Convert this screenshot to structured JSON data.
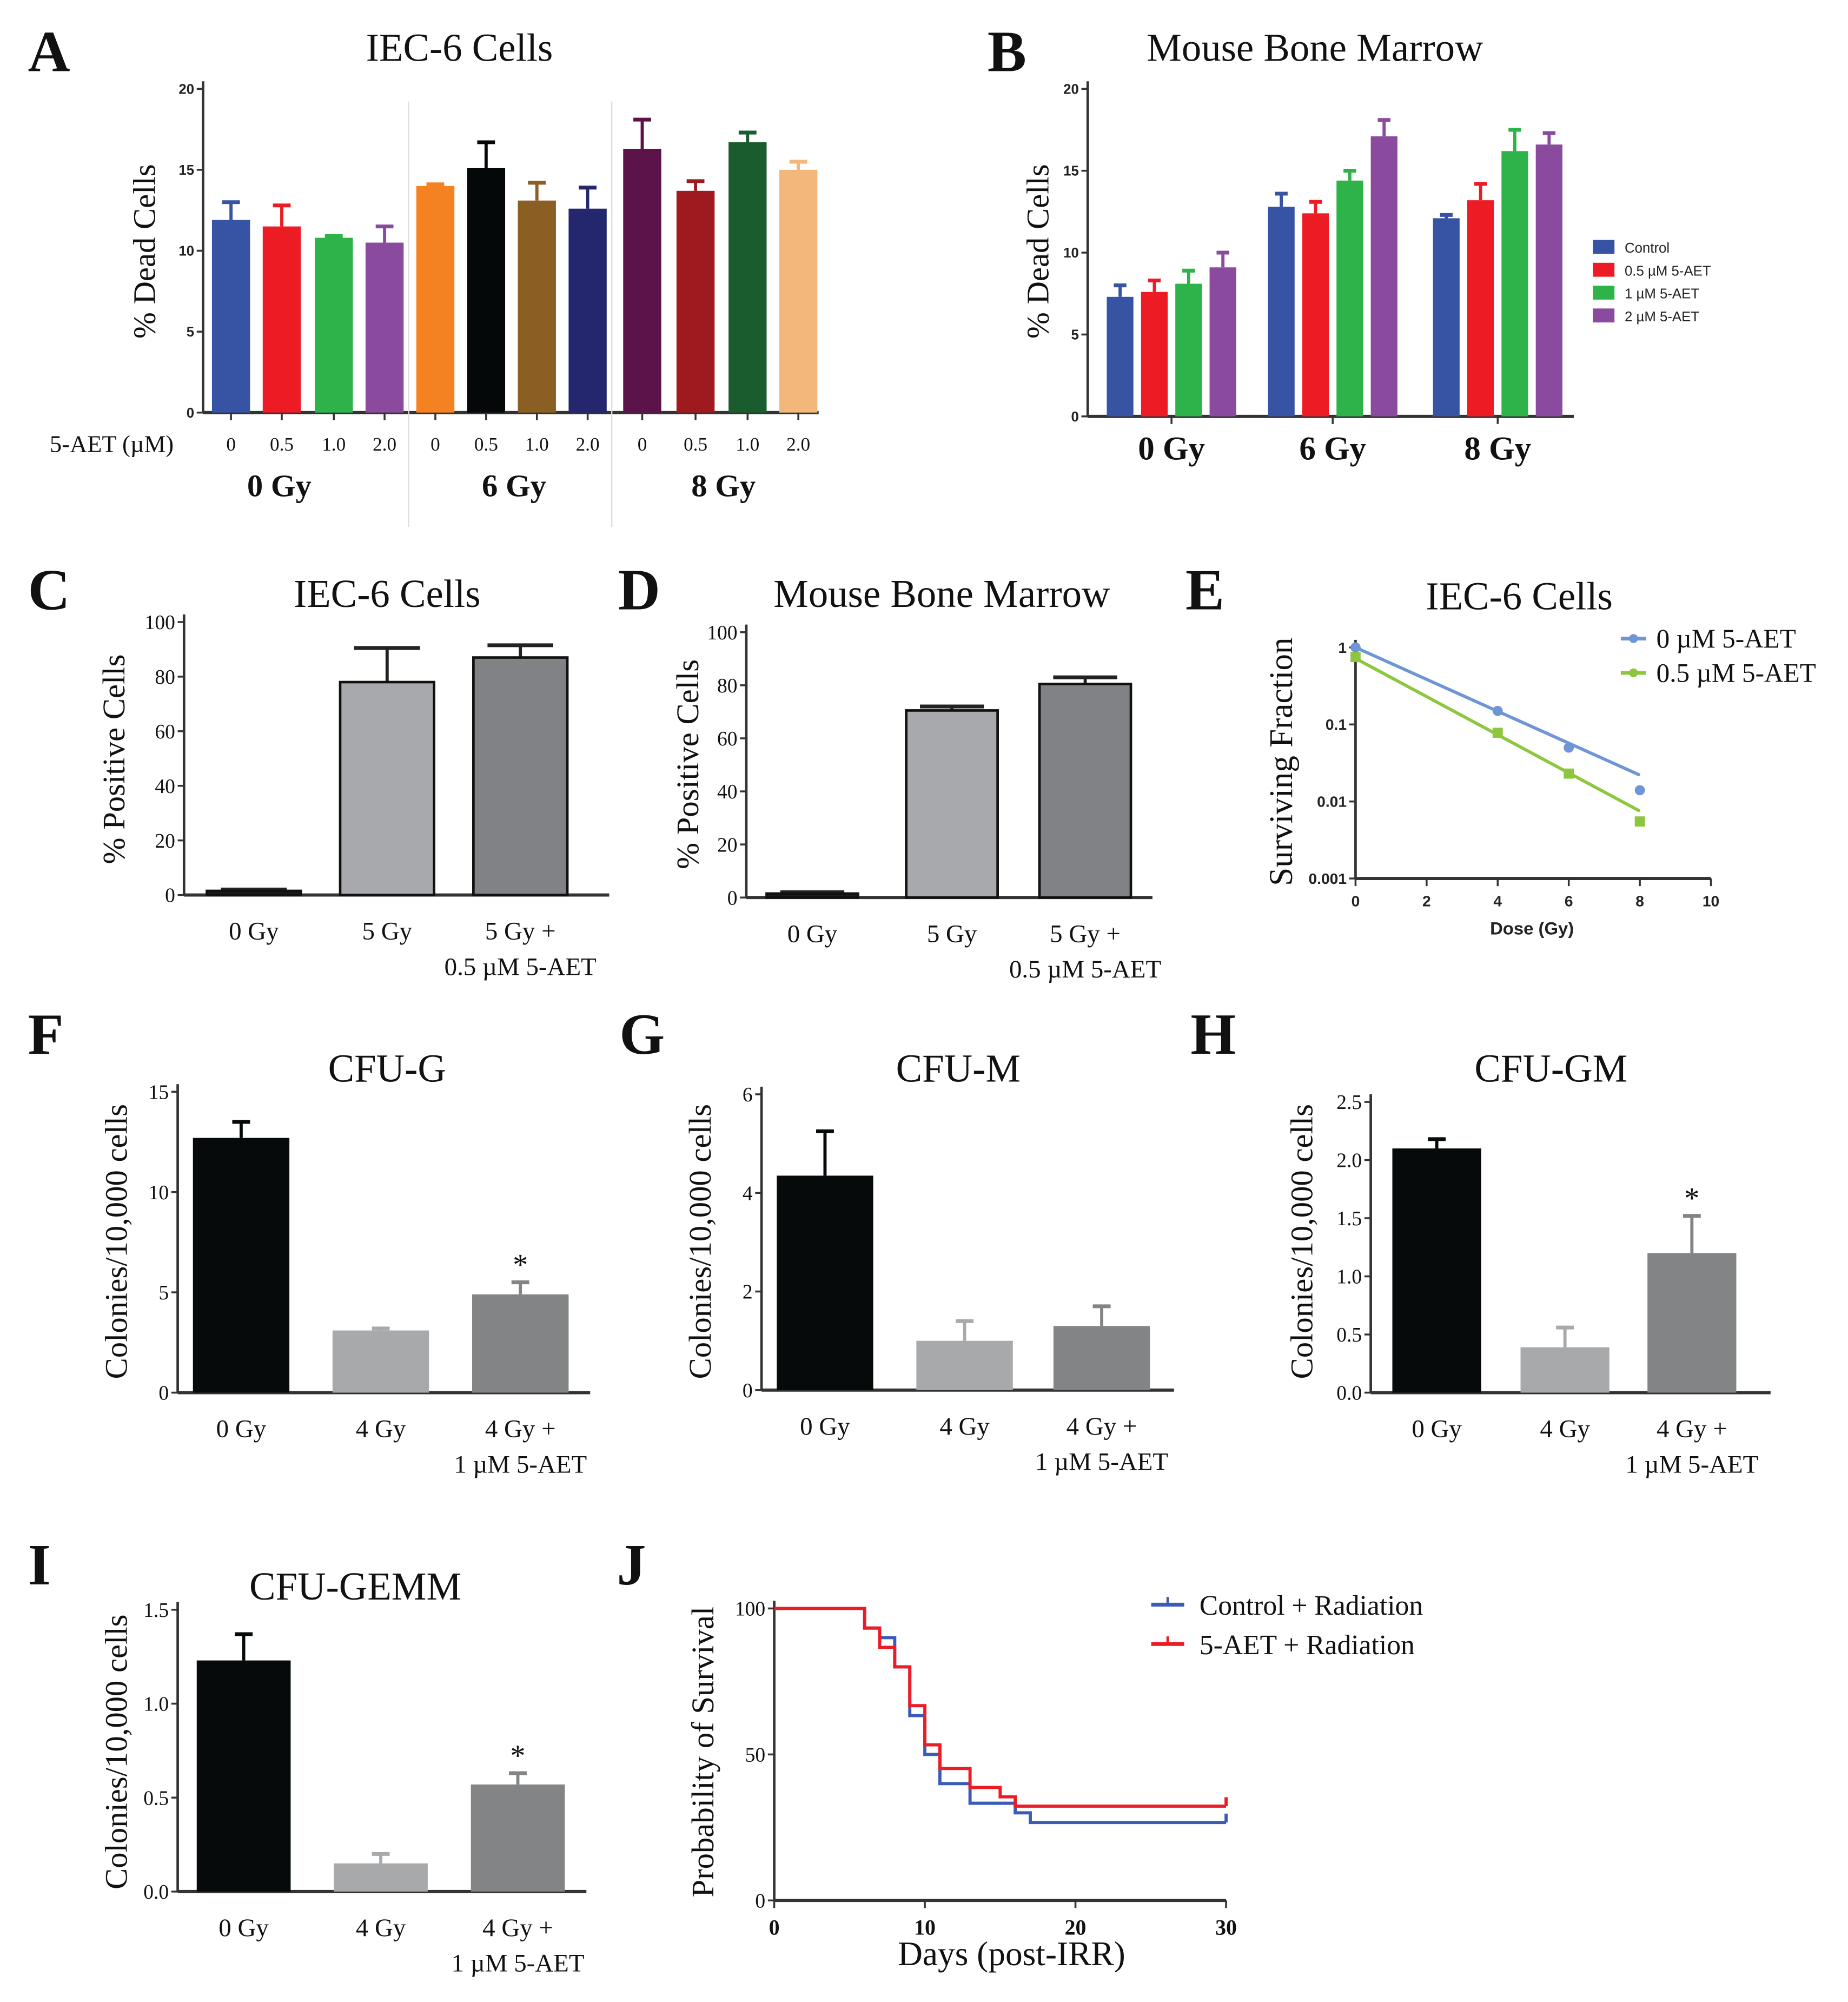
{
  "chart_data": [
    {
      "panel": "A",
      "type": "bar",
      "title": "IEC-6 Cells",
      "ylabel": "% Dead Cells",
      "xlabel": "5-AET (µM)",
      "ylim": [
        0,
        20
      ],
      "yticks": [
        "0",
        "5",
        "10",
        "15",
        "20"
      ],
      "categories": [
        "0",
        "0.5",
        "1.0",
        "2.0",
        "0",
        "0.5",
        "1.0",
        "2.0",
        "0",
        "0.5",
        "1.0",
        "2.0"
      ],
      "groups": [
        "0 Gy",
        "6 Gy",
        "8 Gy"
      ],
      "values": [
        11.9,
        11.5,
        10.8,
        10.5,
        14.0,
        15.1,
        13.1,
        12.6,
        16.3,
        13.7,
        16.7,
        15.0
      ],
      "errors": [
        13.0,
        12.8,
        10.9,
        11.5,
        14.1,
        16.7,
        14.2,
        13.9,
        18.1,
        14.3,
        17.3,
        15.5
      ],
      "colors": [
        "#3753a3",
        "#ed1c24",
        "#2db34a",
        "#8a4a9e",
        "#f58220",
        "#050808",
        "#8b5e24",
        "#24266e",
        "#5c1349",
        "#9e1a1e",
        "#1a5c2e",
        "#f3b77b"
      ]
    },
    {
      "panel": "B",
      "type": "bar",
      "title": "Mouse Bone Marrow",
      "ylabel": "% Dead Cells",
      "ylim": [
        0,
        20
      ],
      "yticks": [
        "0",
        "5",
        "10",
        "15",
        "20"
      ],
      "categories": [
        "0 Gy",
        "6 Gy",
        "8 Gy"
      ],
      "series": [
        {
          "name": "Control",
          "color": "#3753a3",
          "values": [
            7.3,
            12.8,
            12.1
          ],
          "errors": [
            8.0,
            13.6,
            12.3
          ]
        },
        {
          "name": "0.5 µM 5-AET",
          "color": "#ed1c24",
          "values": [
            7.6,
            12.4,
            13.2
          ],
          "errors": [
            8.3,
            13.1,
            14.2
          ]
        },
        {
          "name": "1 µM 5-AET",
          "color": "#2db34a",
          "values": [
            8.1,
            14.4,
            16.2
          ],
          "errors": [
            8.9,
            15.0,
            17.5
          ]
        },
        {
          "name": "2 µM 5-AET",
          "color": "#8a4a9e",
          "values": [
            9.1,
            17.1,
            16.6
          ],
          "errors": [
            10.0,
            18.1,
            17.3
          ]
        }
      ],
      "legend": "right"
    },
    {
      "panel": "C",
      "type": "bar",
      "title": "IEC-6 Cells",
      "ylabel": "% Positive Cells",
      "ylim": [
        0,
        100
      ],
      "yticks": [
        "0",
        "20",
        "40",
        "60",
        "80",
        "100"
      ],
      "categories": [
        [
          "0 Gy"
        ],
        [
          "5 Gy"
        ],
        [
          "5 Gy +",
          "0.5 µM 5-AET"
        ]
      ],
      "values": [
        1.5,
        78,
        87
      ],
      "errors": [
        2,
        90.5,
        91.5
      ],
      "colors": [
        "#1a1a1a",
        "#a7a9ac",
        "#808285"
      ]
    },
    {
      "panel": "D",
      "type": "bar",
      "title": "Mouse Bone Marrow",
      "ylabel": "% Positive Cells",
      "ylim": [
        0,
        100
      ],
      "yticks": [
        "0",
        "20",
        "40",
        "60",
        "80",
        "100"
      ],
      "categories": [
        [
          "0 Gy"
        ],
        [
          "5 Gy"
        ],
        [
          "5 Gy +",
          "0.5 µM 5-AET"
        ]
      ],
      "values": [
        1.5,
        70.5,
        80.5
      ],
      "errors": [
        2,
        72,
        83
      ],
      "colors": [
        "#1a1a1a",
        "#a7a9ac",
        "#808285"
      ]
    },
    {
      "panel": "E",
      "type": "scatter",
      "title": "IEC-6 Cells",
      "ylabel": "Surviving Fraction",
      "xlabel": "Dose (Gy)",
      "yscale": "log",
      "ylim": [
        0.001,
        1
      ],
      "xlim": [
        0,
        10
      ],
      "yticks": [
        "0.001",
        "0.01",
        "0.1",
        "1"
      ],
      "xticks": [
        "0",
        "2",
        "4",
        "6",
        "8",
        "10"
      ],
      "series": [
        {
          "name": "0 µM 5-AET",
          "color": "#6f95d6",
          "x": [
            0,
            4,
            6,
            8
          ],
          "y": [
            1,
            0.15,
            0.05,
            0.014
          ],
          "fit": [
            1,
            0.022
          ]
        },
        {
          "name": "0.5 µM 5-AET",
          "color": "#8dc63f",
          "x": [
            0,
            4,
            6,
            8
          ],
          "y": [
            0.75,
            0.078,
            0.023,
            0.0055
          ],
          "fit": [
            0.72,
            0.0075
          ]
        }
      ],
      "legend": "top-right"
    },
    {
      "panel": "F",
      "type": "bar",
      "title": "CFU-G",
      "ylabel": "Colonies/10,000 cells",
      "ylim": [
        0,
        15
      ],
      "yticks": [
        "0",
        "5",
        "10",
        "15"
      ],
      "categories": [
        [
          "0 Gy"
        ],
        [
          "4 Gy"
        ],
        [
          "4 Gy +",
          "1 µM 5-AET"
        ]
      ],
      "values": [
        12.7,
        3.1,
        4.9
      ],
      "errors": [
        13.5,
        3.2,
        5.5
      ],
      "significance": [
        "",
        "",
        "*"
      ],
      "colors": [
        "#060a0a",
        "#a8a9ab",
        "#838485"
      ]
    },
    {
      "panel": "G",
      "type": "bar",
      "title": "CFU-M",
      "ylabel": "Colonies/10,000 cells",
      "ylim": [
        0,
        6
      ],
      "yticks": [
        "0",
        "2",
        "4",
        "6"
      ],
      "categories": [
        [
          "0 Gy"
        ],
        [
          "4 Gy"
        ],
        [
          "4 Gy +",
          "1 µM 5-AET"
        ]
      ],
      "values": [
        4.35,
        1.0,
        1.3
      ],
      "errors": [
        5.25,
        1.4,
        1.7
      ],
      "significance": [
        "",
        "",
        ""
      ],
      "colors": [
        "#060a0a",
        "#a8a9ab",
        "#838485"
      ]
    },
    {
      "panel": "H",
      "type": "bar",
      "title": "CFU-GM",
      "ylabel": "Colonies/10,000 cells",
      "ylim": [
        0,
        2.5
      ],
      "yticks": [
        "0.0",
        "0.5",
        "1.0",
        "1.5",
        "2.0",
        "2.5"
      ],
      "categories": [
        [
          "0 Gy"
        ],
        [
          "4 Gy"
        ],
        [
          "4 Gy +",
          "1 µM 5-AET"
        ]
      ],
      "values": [
        2.1,
        0.39,
        1.2
      ],
      "errors": [
        2.18,
        0.56,
        1.52
      ],
      "significance": [
        "",
        "",
        "*"
      ],
      "colors": [
        "#060a0a",
        "#a8a9ab",
        "#838485"
      ]
    },
    {
      "panel": "I",
      "type": "bar",
      "title": "CFU-GEMM",
      "ylabel": "Colonies/10,000 cells",
      "ylim": [
        0,
        1.5
      ],
      "yticks": [
        "0.0",
        "0.5",
        "1.0",
        "1.5"
      ],
      "categories": [
        [
          "0 Gy"
        ],
        [
          "4 Gy"
        ],
        [
          "4 Gy +",
          "1 µM 5-AET"
        ]
      ],
      "values": [
        1.23,
        0.15,
        0.57
      ],
      "errors": [
        1.37,
        0.2,
        0.63
      ],
      "significance": [
        "",
        "",
        "*"
      ],
      "colors": [
        "#060a0a",
        "#a8a9ab",
        "#838485"
      ]
    },
    {
      "panel": "J",
      "type": "line",
      "title": "",
      "ylabel": "Probability of Survival",
      "xlabel": "Days (post-IRR)",
      "ylim": [
        0,
        100
      ],
      "xlim": [
        0,
        30
      ],
      "yticks": [
        "0",
        "50",
        "100"
      ],
      "xticks": [
        "0",
        "10",
        "20",
        "30"
      ],
      "series": [
        {
          "name": "Control + Radiation",
          "color": "#3b5bb5",
          "steps": [
            [
              0,
              100
            ],
            [
              6,
              93.3
            ],
            [
              7,
              90
            ],
            [
              8,
              80
            ],
            [
              9,
              63.3
            ],
            [
              10,
              50
            ],
            [
              11,
              40
            ],
            [
              13,
              33.3
            ],
            [
              16,
              30
            ],
            [
              17,
              26.7
            ],
            [
              30,
              26.7
            ]
          ]
        },
        {
          "name": "5-AET + Radiation",
          "color": "#ed1c24",
          "steps": [
            [
              0,
              100
            ],
            [
              6,
              93.3
            ],
            [
              7,
              86.7
            ],
            [
              8,
              80
            ],
            [
              9,
              66.7
            ],
            [
              10,
              53.3
            ],
            [
              11,
              45.2
            ],
            [
              13,
              38.7
            ],
            [
              15,
              35.5
            ],
            [
              16,
              32.3
            ],
            [
              30,
              32.3
            ]
          ]
        }
      ],
      "legend": "top-right"
    }
  ]
}
